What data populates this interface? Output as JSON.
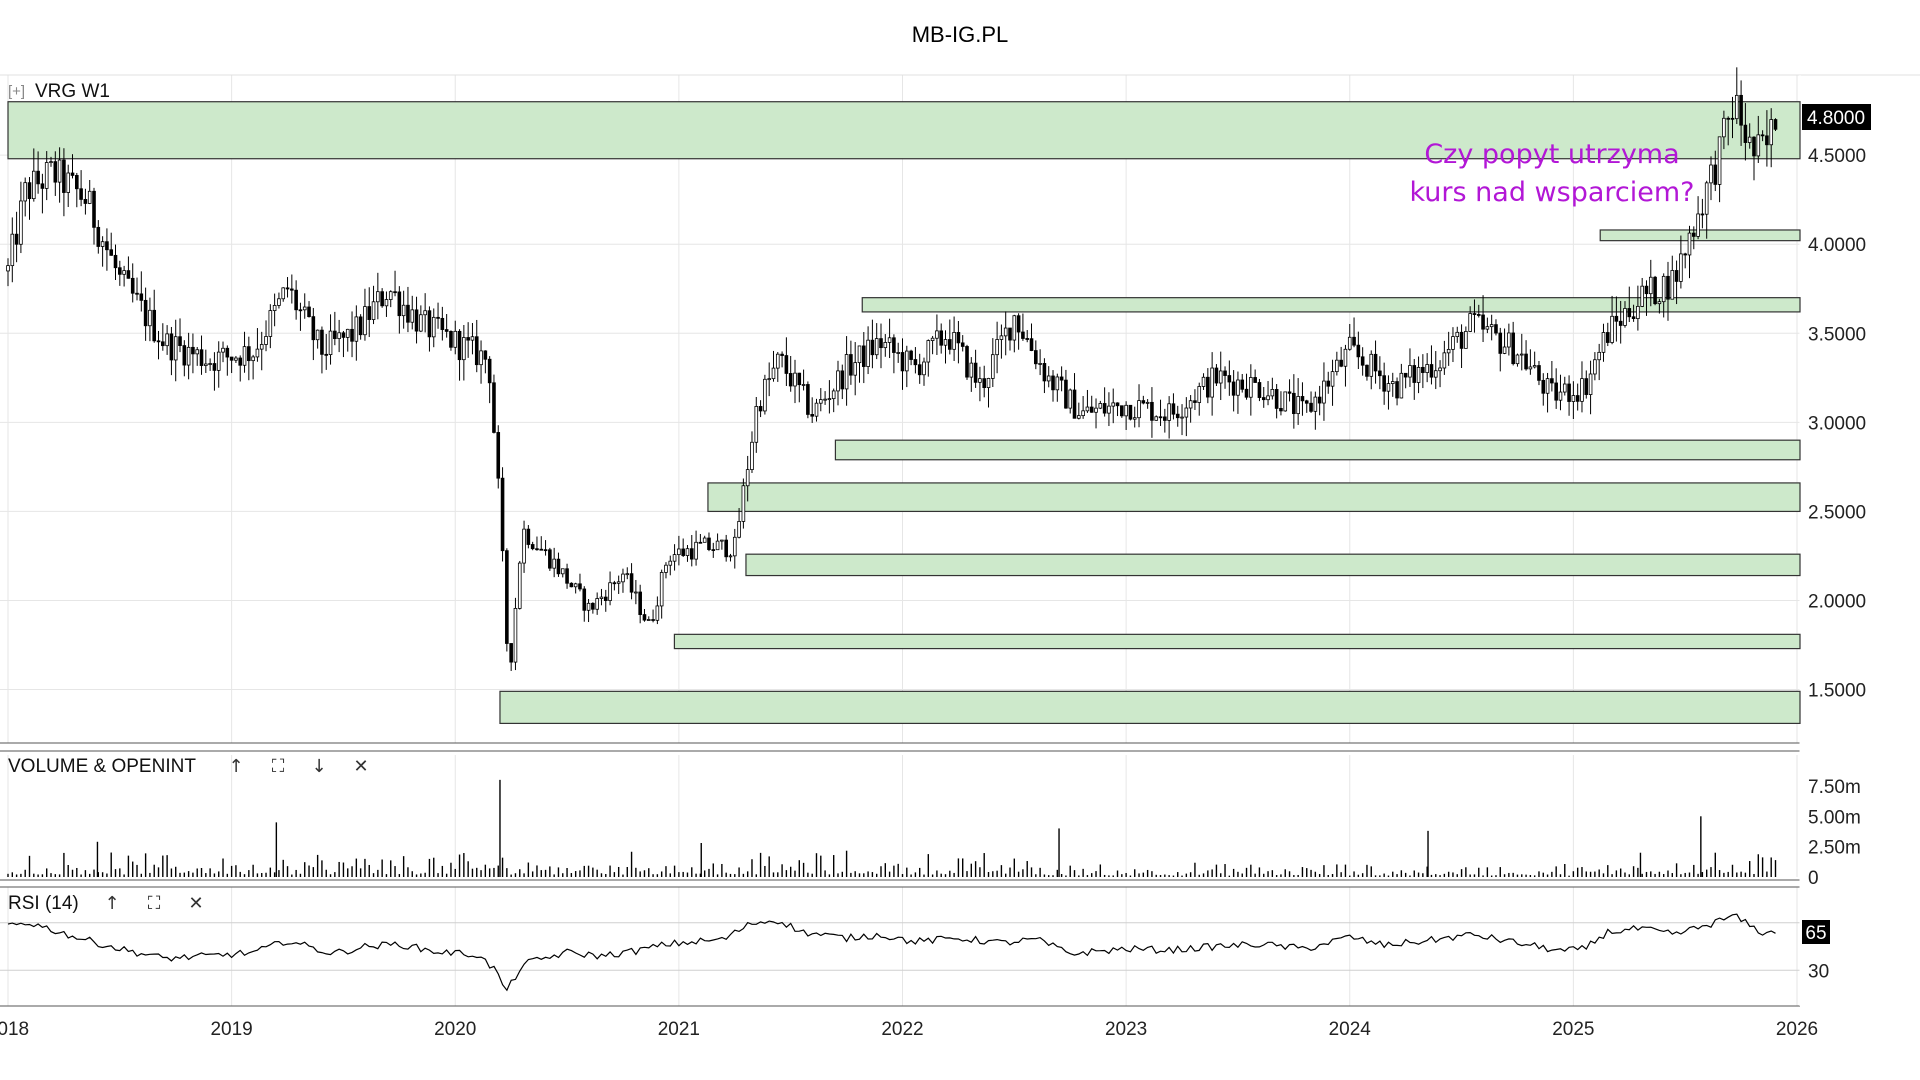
{
  "page": {
    "title": "MB-IG.PL"
  },
  "price_pane": {
    "symbol_label": "VRG W1",
    "collapse_glyph": "[+]",
    "current_price_label": "4.8000",
    "y_tick_labels": [
      "1.5000",
      "2.0000",
      "2.5000",
      "3.0000",
      "3.5000",
      "4.0000",
      "4.5000"
    ],
    "annotation": [
      "Czy popyt utrzyma",
      "kurs nad wsparciem?"
    ]
  },
  "volume_pane": {
    "title": "VOLUME & OPENINT",
    "controls": [
      {
        "name": "move-up-icon",
        "glyph": "↑"
      },
      {
        "name": "maximize-icon",
        "glyph": "⛶"
      },
      {
        "name": "move-down-icon",
        "glyph": "↓"
      },
      {
        "name": "close-icon",
        "glyph": "✕"
      }
    ],
    "y_tick_labels": [
      "7.50m",
      "5.00m",
      "2.50m",
      "0"
    ]
  },
  "rsi_pane": {
    "title": "RSI (14)",
    "controls": [
      {
        "name": "move-up-icon",
        "glyph": "↑"
      },
      {
        "name": "maximize-icon",
        "glyph": "⛶"
      },
      {
        "name": "close-icon",
        "glyph": "✕"
      }
    ],
    "current_value_label": "65",
    "y_tick_labels": [
      "30"
    ]
  },
  "x_axis": {
    "tick_labels": [
      "2018",
      "2019",
      "2020",
      "2021",
      "2022",
      "2023",
      "2024",
      "2025",
      "2026"
    ]
  },
  "colors": {
    "zone_fill": "#cde9cb",
    "zone_stroke": "#333333",
    "annotation": "#b217d6",
    "candle": "#000000",
    "badge_bg": "#000000",
    "badge_text": "#ffffff",
    "grid": "#e6e6e6"
  },
  "chart_data": {
    "type": "candlestick",
    "title": "MB-IG.PL",
    "symbol": "VRG",
    "timeframe": "W1",
    "x_range": [
      2018.0,
      2026.0
    ],
    "ylim": [
      1.2,
      4.95
    ],
    "price_path": [
      [
        2018.0,
        3.85
      ],
      [
        2018.08,
        4.3
      ],
      [
        2018.2,
        4.4
      ],
      [
        2018.35,
        4.25
      ],
      [
        2018.5,
        3.8
      ],
      [
        2018.7,
        3.45
      ],
      [
        2018.9,
        3.35
      ],
      [
        2019.1,
        3.4
      ],
      [
        2019.25,
        3.75
      ],
      [
        2019.4,
        3.4
      ],
      [
        2019.55,
        3.5
      ],
      [
        2019.7,
        3.75
      ],
      [
        2019.85,
        3.55
      ],
      [
        2020.0,
        3.45
      ],
      [
        2020.15,
        3.35
      ],
      [
        2020.2,
        2.5
      ],
      [
        2020.24,
        1.55
      ],
      [
        2020.3,
        2.4
      ],
      [
        2020.45,
        2.2
      ],
      [
        2020.6,
        1.95
      ],
      [
        2020.75,
        2.15
      ],
      [
        2020.87,
        1.85
      ],
      [
        2020.95,
        2.25
      ],
      [
        2021.1,
        2.3
      ],
      [
        2021.25,
        2.3
      ],
      [
        2021.35,
        3.1
      ],
      [
        2021.45,
        3.35
      ],
      [
        2021.6,
        3.05
      ],
      [
        2021.75,
        3.3
      ],
      [
        2021.9,
        3.45
      ],
      [
        2022.05,
        3.3
      ],
      [
        2022.2,
        3.5
      ],
      [
        2022.35,
        3.2
      ],
      [
        2022.5,
        3.6
      ],
      [
        2022.65,
        3.25
      ],
      [
        2022.8,
        3.05
      ],
      [
        2023.0,
        3.1
      ],
      [
        2023.2,
        3.05
      ],
      [
        2023.4,
        3.25
      ],
      [
        2023.6,
        3.2
      ],
      [
        2023.8,
        3.05
      ],
      [
        2024.0,
        3.4
      ],
      [
        2024.2,
        3.2
      ],
      [
        2024.4,
        3.35
      ],
      [
        2024.55,
        3.55
      ],
      [
        2024.75,
        3.4
      ],
      [
        2024.9,
        3.15
      ],
      [
        2025.05,
        3.2
      ],
      [
        2025.15,
        3.5
      ],
      [
        2025.3,
        3.7
      ],
      [
        2025.45,
        3.8
      ],
      [
        2025.55,
        4.15
      ],
      [
        2025.65,
        4.5
      ],
      [
        2025.72,
        4.8
      ],
      [
        2025.8,
        4.5
      ],
      [
        2025.87,
        4.55
      ],
      [
        2025.92,
        4.8
      ]
    ],
    "zones": [
      {
        "from": 2018.0,
        "low": 4.48,
        "high": 4.8
      },
      {
        "from": 2025.12,
        "low": 4.02,
        "high": 4.08
      },
      {
        "from": 2021.82,
        "low": 3.62,
        "high": 3.7
      },
      {
        "from": 2021.7,
        "low": 2.79,
        "high": 2.9
      },
      {
        "from": 2021.13,
        "low": 2.5,
        "high": 2.66
      },
      {
        "from": 2021.3,
        "low": 2.14,
        "high": 2.26
      },
      {
        "from": 2020.98,
        "low": 1.73,
        "high": 1.81
      },
      {
        "from": 2020.2,
        "low": 1.31,
        "high": 1.49
      }
    ],
    "volume": {
      "unit": "m",
      "ylim": [
        0,
        8.4
      ],
      "typical": [
        0.2,
        2.4
      ],
      "spikes": [
        [
          2020.2,
          8.0
        ],
        [
          2019.2,
          4.5
        ],
        [
          2022.7,
          4.0
        ],
        [
          2024.35,
          3.8
        ],
        [
          2025.57,
          5.0
        ],
        [
          2018.4,
          2.9
        ],
        [
          2021.1,
          2.8
        ],
        [
          2025.3,
          2.0
        ]
      ]
    },
    "rsi": {
      "period": 14,
      "ylim": [
        0,
        100
      ],
      "levels": [
        70,
        30
      ],
      "last": 65,
      "path": [
        [
          2018.0,
          68
        ],
        [
          2018.1,
          70
        ],
        [
          2018.3,
          58
        ],
        [
          2018.5,
          48
        ],
        [
          2018.7,
          40
        ],
        [
          2018.9,
          42
        ],
        [
          2019.1,
          45
        ],
        [
          2019.25,
          55
        ],
        [
          2019.45,
          44
        ],
        [
          2019.6,
          50
        ],
        [
          2019.75,
          52
        ],
        [
          2019.9,
          46
        ],
        [
          2020.1,
          43
        ],
        [
          2020.18,
          30
        ],
        [
          2020.23,
          12
        ],
        [
          2020.3,
          35
        ],
        [
          2020.5,
          45
        ],
        [
          2020.65,
          42
        ],
        [
          2020.8,
          46
        ],
        [
          2020.95,
          52
        ],
        [
          2021.2,
          56
        ],
        [
          2021.33,
          70
        ],
        [
          2021.45,
          72
        ],
        [
          2021.55,
          62
        ],
        [
          2021.75,
          57
        ],
        [
          2021.9,
          60
        ],
        [
          2022.05,
          54
        ],
        [
          2022.25,
          57
        ],
        [
          2022.45,
          53
        ],
        [
          2022.6,
          56
        ],
        [
          2022.75,
          44
        ],
        [
          2023.0,
          48
        ],
        [
          2023.2,
          47
        ],
        [
          2023.4,
          50
        ],
        [
          2023.6,
          52
        ],
        [
          2023.8,
          48
        ],
        [
          2024.0,
          58
        ],
        [
          2024.15,
          51
        ],
        [
          2024.35,
          55
        ],
        [
          2024.55,
          60
        ],
        [
          2024.75,
          53
        ],
        [
          2024.95,
          46
        ],
        [
          2025.05,
          48
        ],
        [
          2025.15,
          62
        ],
        [
          2025.3,
          65
        ],
        [
          2025.45,
          60
        ],
        [
          2025.6,
          68
        ],
        [
          2025.72,
          76
        ],
        [
          2025.8,
          66
        ],
        [
          2025.87,
          60
        ],
        [
          2025.92,
          65
        ]
      ]
    },
    "annotation": "Czy popyt utrzyma kurs nad wsparciem?",
    "grid": true
  }
}
